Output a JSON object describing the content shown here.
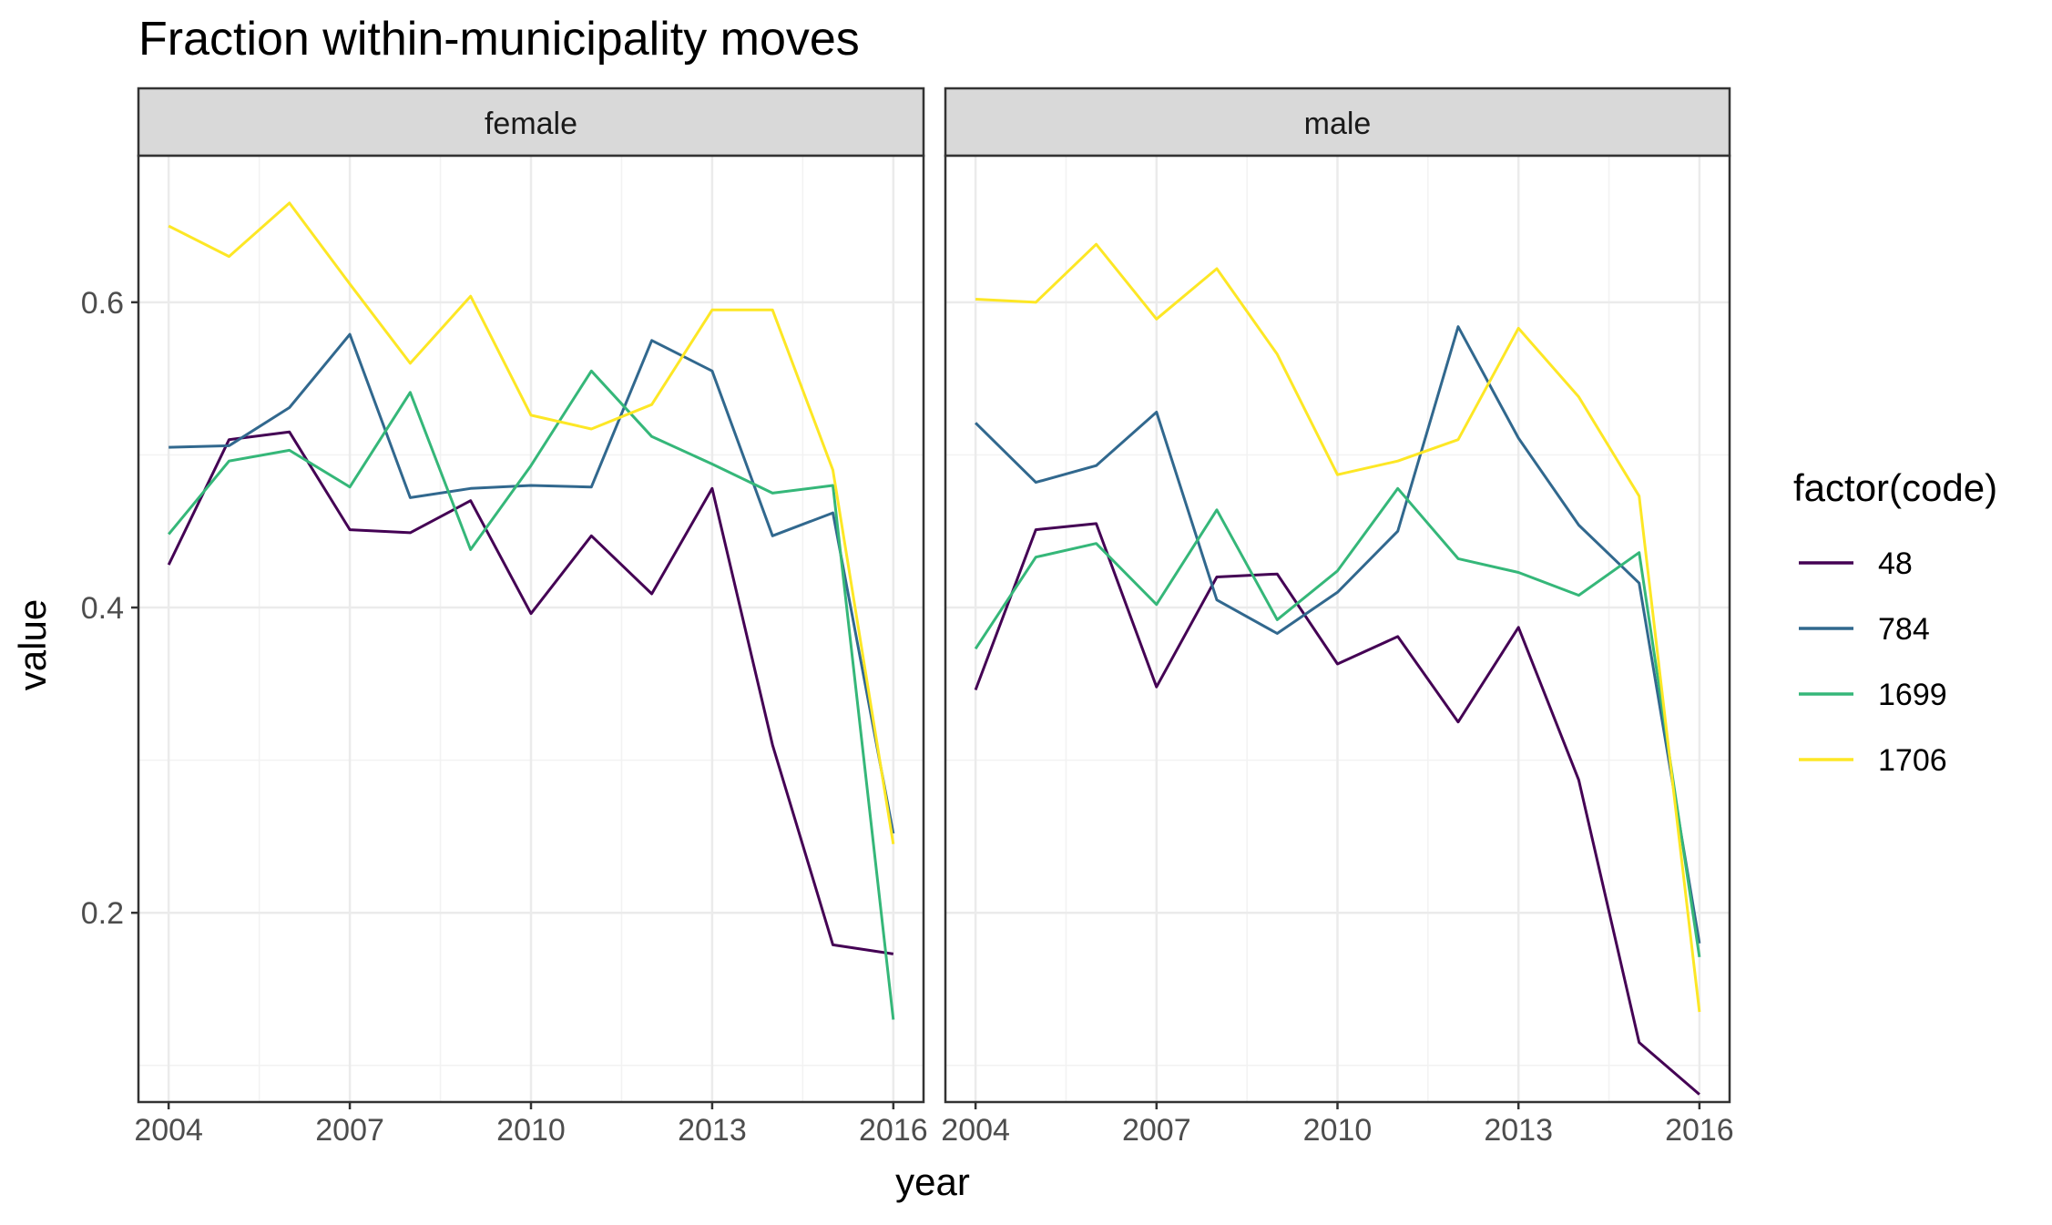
{
  "chart_data": {
    "type": "line",
    "title": "Fraction within-municipality moves",
    "xlabel": "year",
    "ylabel": "value",
    "x_ticks": [
      "2004",
      "2007",
      "2010",
      "2013",
      "2016"
    ],
    "y_ticks": [
      "0.2",
      "0.4",
      "0.6"
    ],
    "xlim": [
      2003.5,
      2016.5
    ],
    "ylim": [
      0.076,
      0.696
    ],
    "grid": true,
    "legend": {
      "title": "factor(code)",
      "position": "right",
      "entries": [
        "48",
        "784",
        "1699",
        "1706"
      ]
    },
    "x": [
      2004,
      2005,
      2006,
      2007,
      2008,
      2009,
      2010,
      2011,
      2012,
      2013,
      2014,
      2015,
      2016
    ],
    "panels": [
      {
        "label": "female",
        "series": [
          {
            "name": "48",
            "color": "#440154",
            "values": [
              0.428,
              0.51,
              0.515,
              0.451,
              0.449,
              0.47,
              0.396,
              0.447,
              0.409,
              0.478,
              0.31,
              0.179,
              0.173
            ]
          },
          {
            "name": "784",
            "color": "#31688e",
            "values": [
              0.505,
              0.506,
              0.531,
              0.579,
              0.472,
              0.478,
              0.48,
              0.479,
              0.575,
              0.555,
              0.447,
              0.462,
              0.252
            ]
          },
          {
            "name": "1699",
            "color": "#35b779",
            "values": [
              0.448,
              0.496,
              0.503,
              0.479,
              0.541,
              0.438,
              0.493,
              0.555,
              0.512,
              0.494,
              0.475,
              0.48,
              0.13
            ]
          },
          {
            "name": "1706",
            "color": "#fde725",
            "values": [
              0.65,
              0.63,
              0.665,
              0.612,
              0.56,
              0.604,
              0.526,
              0.517,
              0.533,
              0.595,
              0.595,
              0.49,
              0.245
            ]
          }
        ]
      },
      {
        "label": "male",
        "series": [
          {
            "name": "48",
            "color": "#440154",
            "values": [
              0.346,
              0.451,
              0.455,
              0.348,
              0.42,
              0.422,
              0.363,
              0.381,
              0.325,
              0.387,
              0.287,
              0.115,
              0.081
            ]
          },
          {
            "name": "784",
            "color": "#31688e",
            "values": [
              0.521,
              0.482,
              0.493,
              0.528,
              0.405,
              0.383,
              0.41,
              0.45,
              0.584,
              0.511,
              0.454,
              0.416,
              0.18
            ]
          },
          {
            "name": "1699",
            "color": "#35b779",
            "values": [
              0.373,
              0.433,
              0.442,
              0.402,
              0.464,
              0.392,
              0.424,
              0.478,
              0.432,
              0.423,
              0.408,
              0.436,
              0.171
            ]
          },
          {
            "name": "1706",
            "color": "#fde725",
            "values": [
              0.602,
              0.6,
              0.638,
              0.589,
              0.622,
              0.566,
              0.487,
              0.496,
              0.51,
              0.583,
              0.538,
              0.473,
              0.135
            ]
          }
        ]
      }
    ]
  }
}
